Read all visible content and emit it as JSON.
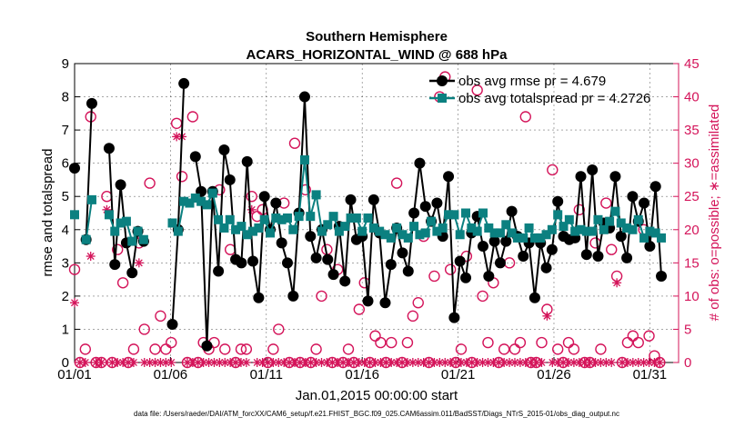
{
  "chart_data": {
    "type": "line",
    "title": "Southern Hemisphere",
    "subtitle": "ACARS_HORIZONTAL_WIND @ 688 hPa",
    "xlabel": "Jan.01,2015 00:00:00 start",
    "ylabel_left": "rmse and totalspread",
    "ylabel_right": "# of obs: o=possible; ∗=assimilated",
    "footer": "data file: /Users/raeder/DAI/ATM_forcXX/CAM6_setup/f.e21.FHIST_BGC.f09_025.CAM6assim.011/BadSST/Diags_NTrS_2015-01/obs_diag_output.nc",
    "xlim": [
      1,
      32.5
    ],
    "ylim_left": [
      0,
      9
    ],
    "ylim_right": [
      0,
      45
    ],
    "x_ticks": [
      1,
      6,
      11,
      16,
      21,
      26,
      31
    ],
    "x_tick_labels": [
      "01/01",
      "01/06",
      "01/11",
      "01/16",
      "01/21",
      "01/26",
      "01/31"
    ],
    "y_left_ticks": [
      "0",
      "1",
      "2",
      "3",
      "4",
      "5",
      "6",
      "7",
      "8",
      "9"
    ],
    "y_right_ticks": [
      "0",
      "5",
      "10",
      "15",
      "20",
      "25",
      "30",
      "35",
      "40",
      "45"
    ],
    "colors": {
      "rmse": "#000000",
      "spread": "#0b8080",
      "obs": "#d4145a"
    },
    "legend_position": "top-right",
    "series": [
      {
        "name": "obs avg rmse pr = 4.679",
        "axis": "left",
        "marker": "circle",
        "values": [
          5.85,
          null,
          3.7,
          7.8,
          null,
          null,
          6.45,
          2.95,
          5.35,
          3.6,
          2.7,
          3.95,
          3.65,
          null,
          null,
          null,
          null,
          1.15,
          4.0,
          8.4,
          null,
          6.2,
          5.15,
          0.5,
          5.15,
          2.75,
          6.4,
          5.5,
          3.1,
          3.0,
          6.05,
          3.05,
          1.95,
          5.0,
          4.0,
          4.8,
          3.6,
          3.0,
          2.0,
          4.5,
          8.0,
          3.8,
          3.15,
          4.0,
          3.1,
          2.65,
          4.1,
          2.45,
          4.9,
          3.7,
          3.8,
          1.85,
          4.9,
          3.9,
          1.8,
          2.95,
          4.05,
          3.3,
          2.75,
          4.5,
          6.0,
          4.7,
          4.25,
          4.8,
          3.8,
          5.6,
          1.35,
          3.05,
          2.55,
          3.9,
          4.4,
          3.5,
          2.6,
          3.65,
          3.0,
          3.65,
          4.55,
          3.8,
          3.2,
          3.6,
          1.95,
          3.6,
          2.85,
          3.4,
          4.85,
          3.8,
          3.7,
          3.75,
          5.6,
          3.25,
          5.8,
          3.2,
          4.2,
          4.05,
          5.6,
          3.8,
          3.15,
          5.0,
          4.25,
          4.8,
          3.5,
          5.3,
          2.6
        ],
        "x_start": 1.0,
        "x_step": 0.3
      },
      {
        "name": "obs avg totalspread pr = 4.2726",
        "axis": "left",
        "marker": "square",
        "values": [
          4.45,
          null,
          3.7,
          4.9,
          null,
          null,
          4.45,
          3.95,
          4.2,
          4.25,
          3.65,
          3.95,
          3.7,
          null,
          null,
          null,
          null,
          4.2,
          3.95,
          4.85,
          4.8,
          4.95,
          4.85,
          4.75,
          5.1,
          4.3,
          4.05,
          4.3,
          4.0,
          4.1,
          3.85,
          3.95,
          4.05,
          4.3,
          3.9,
          4.35,
          4.3,
          4.35,
          4.0,
          4.4,
          6.1,
          4.4,
          5.05,
          3.95,
          4.15,
          4.4,
          3.95,
          4.1,
          4.35,
          4.35,
          3.95,
          4.35,
          4.05,
          3.95,
          3.85,
          3.75,
          4.05,
          3.85,
          3.75,
          4.1,
          3.85,
          3.9,
          4.25,
          3.95,
          4.05,
          4.45,
          4.45,
          3.85,
          4.5,
          4.05,
          3.95,
          4.5,
          4.05,
          3.9,
          3.9,
          4.15,
          3.9,
          3.75,
          3.75,
          4.05,
          3.75,
          3.75,
          3.85,
          4.0,
          4.45,
          4.1,
          4.3,
          3.95,
          4.0,
          3.95,
          3.95,
          4.3,
          4.0,
          4.25,
          4.55,
          4.2,
          4.05,
          4.0,
          4.3,
          3.75,
          3.95,
          3.9,
          3.75
        ],
        "x_start": 1.0,
        "x_step": 0.3
      }
    ],
    "obs_possible": {
      "axis": "right",
      "marker": "ring",
      "values": [
        14,
        0,
        2,
        37,
        0,
        0,
        25,
        0,
        17,
        12,
        0,
        2,
        18,
        5,
        27,
        2,
        7,
        2,
        3,
        36,
        28,
        0,
        37,
        0,
        3,
        2,
        3,
        26,
        2,
        17,
        0,
        2,
        2,
        25,
        22,
        23,
        0,
        2,
        5,
        24,
        0,
        33,
        0,
        26,
        0,
        2,
        10,
        17,
        0,
        14,
        0,
        2,
        0,
        8,
        12,
        0,
        4,
        3,
        0,
        3,
        27,
        0,
        3,
        7,
        9,
        19,
        0,
        13,
        40,
        43,
        14,
        0,
        2,
        16,
        0,
        41,
        10,
        3,
        12,
        0,
        2,
        15,
        2,
        3,
        37,
        0,
        0,
        3,
        8,
        29,
        2,
        0,
        3,
        2,
        23,
        0,
        0,
        18,
        2,
        24,
        17,
        13,
        0,
        3,
        4,
        3,
        20,
        4,
        1,
        0
      ],
      "x_start": 1.0,
      "x_step": 0.28
    },
    "obs_assimilated": {
      "axis": "right",
      "marker": "asterisk",
      "values": [
        9,
        0,
        0,
        16,
        0,
        0,
        23,
        0,
        0,
        0,
        0,
        0,
        15,
        0,
        0,
        0,
        0,
        0,
        0,
        34,
        34,
        0,
        0,
        0,
        0,
        0,
        0,
        0,
        0,
        0,
        0,
        0,
        0,
        23,
        0,
        0,
        0,
        0,
        0,
        0,
        0,
        0,
        0,
        0,
        0,
        0,
        0,
        0,
        0,
        0,
        0,
        0,
        0,
        0,
        0,
        0,
        0,
        0,
        0,
        0,
        0,
        0,
        0,
        0,
        0,
        0,
        0,
        0,
        0,
        0,
        0,
        0,
        0,
        0,
        0,
        0,
        0,
        0,
        0,
        0,
        0,
        0,
        0,
        0,
        0,
        0,
        0,
        0,
        7,
        0,
        0,
        0,
        0,
        0,
        0,
        0,
        0,
        0,
        0,
        0,
        0,
        12,
        0,
        0,
        0,
        0,
        0,
        0,
        0,
        0
      ],
      "x_start": 1.0,
      "x_step": 0.28
    }
  }
}
